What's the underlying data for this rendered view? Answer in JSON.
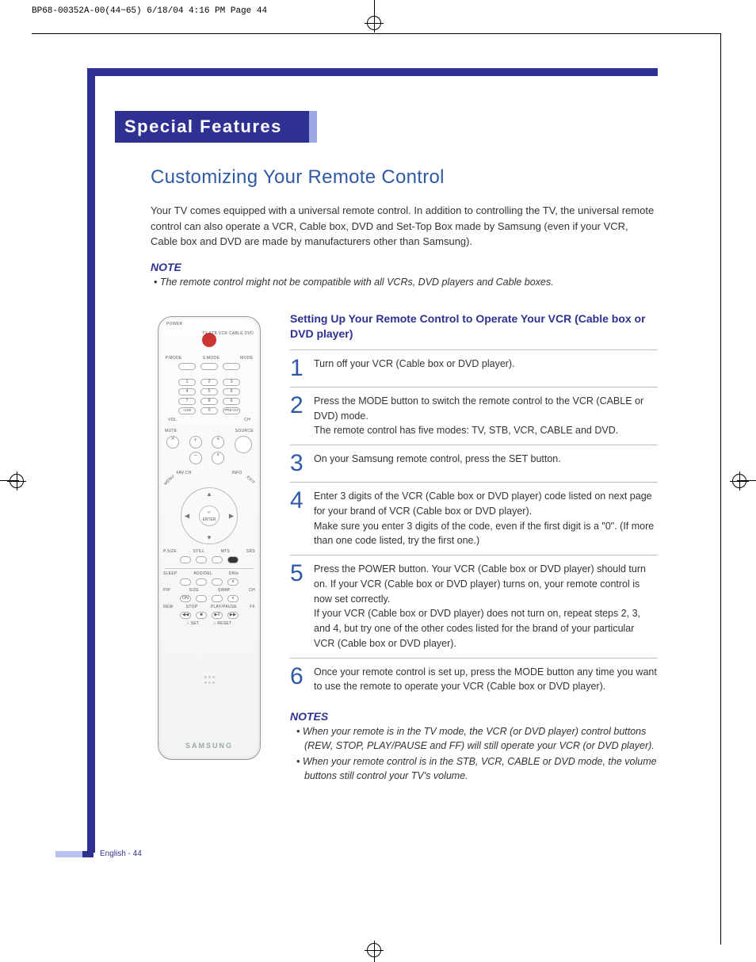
{
  "meta": {
    "header_line": "BP68-00352A-00(44~65)  6/18/04  4:16 PM  Page 44"
  },
  "colors": {
    "brand_blue": "#2e3192",
    "light_blue": "#9da7e6",
    "text_blue": "#2e59a7",
    "rule_gray": "#bbbbbb",
    "body_text": "#333333",
    "bg": "#ffffff"
  },
  "title_bar": "Special Features",
  "subtitle": "Customizing Your Remote Control",
  "intro": "Your TV comes equipped with a universal remote control. In addition to controlling the TV, the universal remote control can also operate a VCR, Cable box, DVD and Set-Top Box made by Samsung (even if your VCR, Cable box and DVD are made by manufacturers other than Samsung).",
  "note": {
    "head": "NOTE",
    "body": "• The remote control might not be compatible with all VCRs, DVD players and Cable boxes."
  },
  "remote": {
    "power": "POWER",
    "mode_row": "TV  STB  VCR  CABLE  DVD",
    "pmode": "P.MODE",
    "smode": "S.MODE",
    "mode": "MODE",
    "numbers": [
      "1",
      "2",
      "3",
      "4",
      "5",
      "6",
      "7",
      "8",
      "9",
      "+100",
      "0",
      "PRE-CH"
    ],
    "vol": "VOL",
    "ch": "CH",
    "mute": "MUTE",
    "source": "SOURCE",
    "favch": "FAV.CH",
    "info": "INFO",
    "menu": "MENU",
    "exit": "EXIT",
    "enter": "ENTER",
    "row_a": [
      "P.SIZE",
      "STILL",
      "MTS",
      "SRS"
    ],
    "row_b": [
      "SLEEP",
      "ADD/DEL",
      "DNIe",
      ""
    ],
    "row_c": [
      "PIP",
      "SIZE",
      "SWAP",
      "CH"
    ],
    "row_d": [
      "ON",
      "",
      "",
      ""
    ],
    "row_e": [
      "REW",
      "STOP",
      "PLAY/PAUSE",
      "FF"
    ],
    "row_f": [
      "○ SET",
      "○ RESET"
    ],
    "logo": "SAMSUNG"
  },
  "setup": {
    "head": "Setting Up Your Remote Control to Operate Your VCR (Cable box or DVD player)",
    "steps": [
      "Turn off your VCR (Cable box or DVD player).",
      "Press the MODE button to switch the remote control to the VCR (CABLE or DVD) mode.\nThe remote control has five modes: TV, STB, VCR, CABLE and DVD.",
      "On your Samsung remote control, press the SET button.",
      "Enter 3 digits of the VCR (Cable box or DVD player) code listed on next page for your brand of VCR (Cable box or DVD player).\nMake sure you enter 3 digits of the code, even if the first digit is a \"0\". (If more than one code listed, try the first one.)",
      "Press the POWER button. Your VCR (Cable box or DVD player) should turn on. If your VCR (Cable box or DVD player) turns on, your remote control is now set correctly.\nIf your VCR (Cable box or DVD player) does not turn on, repeat steps 2, 3, and 4, but try one of the other codes listed for the brand of your particular VCR (Cable box or DVD player).",
      "Once your remote control is set up, press the MODE button any time you want to use the remote to operate your VCR (Cable box or DVD player)."
    ]
  },
  "notes2": {
    "head": "NOTES",
    "items": [
      "When your remote is in the TV mode, the VCR (or DVD player) control buttons (REW, STOP, PLAY/PAUSE and FF) will still operate your VCR (or DVD player).",
      "When your remote control is in the STB, VCR, CABLE or DVD mode, the volume buttons still control your TV's volume."
    ]
  },
  "footer": "English - 44"
}
